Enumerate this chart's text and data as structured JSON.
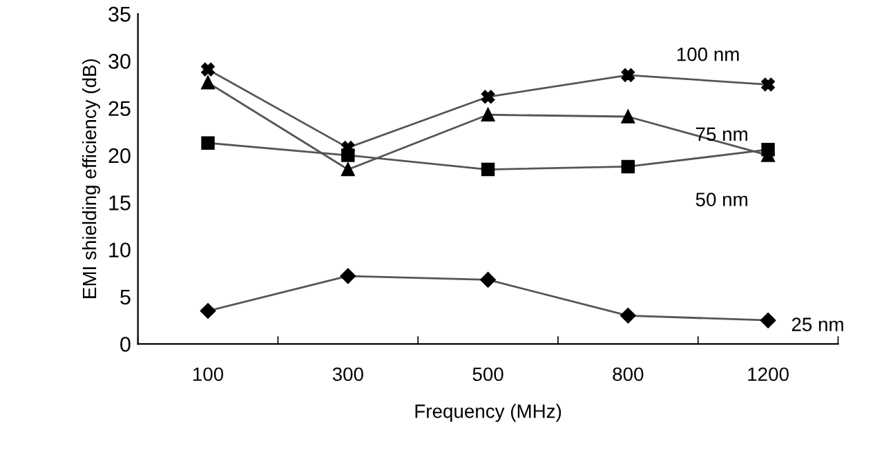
{
  "chart_data": {
    "type": "line",
    "xlabel": "Frequency (MHz)",
    "ylabel": "EMI shielding efficiency (dB)",
    "categories": [
      "100",
      "300",
      "500",
      "800",
      "1200"
    ],
    "series": [
      {
        "name": "100 nm",
        "color": "#000000",
        "marker": "cross",
        "values": [
          29.1,
          20.8,
          26.2,
          28.5,
          27.5
        ]
      },
      {
        "name": "75 nm",
        "color": "#000000",
        "marker": "triangle",
        "values": [
          27.7,
          18.5,
          24.3,
          24.1,
          20.0
        ]
      },
      {
        "name": "50 nm",
        "color": "#000000",
        "marker": "square",
        "values": [
          21.3,
          20.0,
          18.5,
          18.8,
          20.6
        ]
      },
      {
        "name": "25 nm",
        "color": "#000000",
        "marker": "diamond",
        "values": [
          3.5,
          7.2,
          6.8,
          3.0,
          2.5
        ]
      }
    ],
    "ylim": [
      0,
      35
    ],
    "yticks": [
      0,
      5,
      10,
      15,
      20,
      25,
      30,
      35
    ],
    "grid": false,
    "legend": false,
    "line_style": "solid"
  }
}
